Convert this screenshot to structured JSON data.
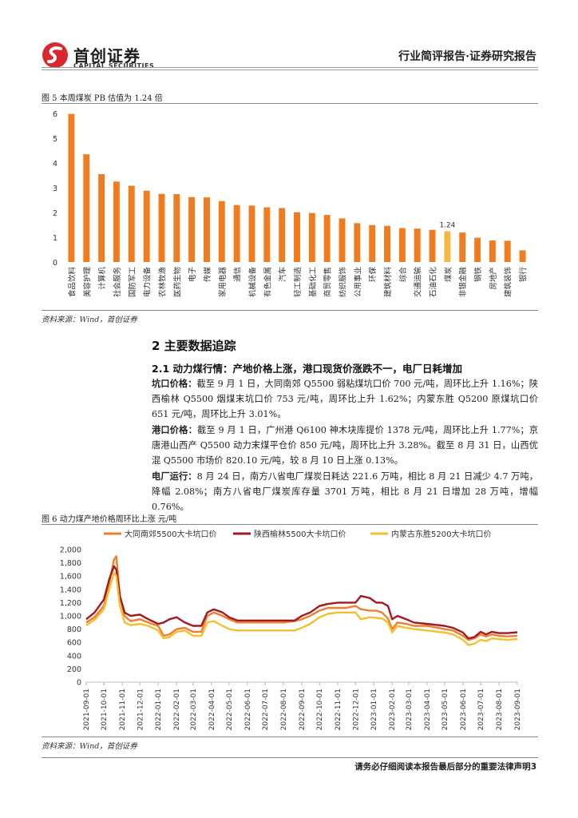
{
  "header": {
    "company_cn": "首创证券",
    "company_en": "CAPITAL SECURITIES",
    "report_type": "行业简评报告·证券研究报告",
    "logo_icon": "capital-securities-logo-icon",
    "brand_color": "#d7282f"
  },
  "figure5": {
    "title": "图 5 本周煤炭 PB 估值为 1.24 倍",
    "source": "资料来源：Wind，首创证券"
  },
  "section2": {
    "heading": "2 主要数据追踪",
    "sub_heading": "2.1 动力煤行情：产地价格上涨，港口现货价涨跌不一，电厂日耗增加",
    "p1_label": "坑口价格：",
    "p1_text": "截至 9 月 1 日，大同南郊 Q5500 弱粘煤坑口价 700 元/吨，周环比上升 1.16%；陕西榆林 Q5500 烟煤末坑口价 753 元/吨，周环比上升 1.62%；内蒙东胜 Q5200 原煤坑口价 651 元/吨，周环比上升 3.01%。",
    "p2_label": "港口价格：",
    "p2_text": "截至 9 月 1 日，广州港 Q6100 神木块库提价 1378 元/吨，周环比上升 1.77%；京唐港山西产 Q5500 动力末煤平仓价 850 元/吨，周环比上升 3.28%。截至 8 月 31 日，山西优混 Q5500 市场价 820.10 元/吨，较 8 月 10 日上涨 0.13%。",
    "p3_label": "电厂运行：",
    "p3_text": "8 月 24 日，南方八省电厂煤炭日耗达 221.6 万吨，相比 8 月 21 日减少 4.7 万吨，降幅 2.08%；南方八省电厂煤炭库存量 3701 万吨，相比 8 月 21 日增加 28 万吨，增幅 0.76%。"
  },
  "figure6": {
    "title": "图 6 动力煤产地价格周环比上涨",
    "unit": "元/吨",
    "source": "资料来源：Wind，首创证券"
  },
  "footer": {
    "disclaimer": "请务必仔细阅读本报告最后部分的重要法律声明",
    "page_number": "3"
  },
  "chart_data": [
    {
      "type": "bar",
      "title": "",
      "categories": [
        "食品饮料",
        "美容护理",
        "计算机",
        "社会服务",
        "国防军工",
        "电力设备",
        "农林牧渔",
        "医药生物",
        "电子",
        "传媒",
        "家用电器",
        "通信",
        "机械设备",
        "有色金属",
        "汽车",
        "轻工制造",
        "基础化工",
        "商贸零售",
        "纺织服饰",
        "公用事业",
        "环保",
        "建筑材料",
        "综合",
        "交通运输",
        "石油石化",
        "煤炭",
        "非银金融",
        "钢铁",
        "房地产",
        "建筑装饰",
        "银行"
      ],
      "values": [
        5.98,
        4.35,
        3.55,
        3.25,
        3.08,
        2.88,
        2.75,
        2.74,
        2.62,
        2.61,
        2.46,
        2.3,
        2.28,
        2.21,
        2.18,
        2.01,
        1.98,
        1.9,
        1.76,
        1.57,
        1.49,
        1.46,
        1.37,
        1.35,
        1.3,
        1.24,
        1.19,
        0.98,
        0.87,
        0.86,
        0.47
      ],
      "ylim": [
        0,
        6
      ],
      "yticks": [
        0,
        1,
        2,
        3,
        4,
        5,
        6
      ],
      "highlight_category": "煤炭",
      "highlight_label": "1.24",
      "bar_color": "#f07c21",
      "highlight_color": "#f5b942",
      "grid": false
    },
    {
      "type": "line",
      "title": "",
      "ylim": [
        0,
        2000
      ],
      "yticks": [
        "0",
        "200",
        "400",
        "600",
        "800",
        "1,000",
        "1,200",
        "1,400",
        "1,600",
        "1,800",
        "2,000"
      ],
      "xticks": [
        "2021-09-01",
        "2021-10-01",
        "2021-11-01",
        "2021-12-01",
        "2022-01-01",
        "2022-02-01",
        "2022-03-01",
        "2022-04-01",
        "2022-05-01",
        "2022-06-01",
        "2022-07-01",
        "2022-08-01",
        "2022-09-01",
        "2022-10-01",
        "2022-11-01",
        "2022-12-01",
        "2023-01-01",
        "2023-02-01",
        "2023-03-01",
        "2023-04-01",
        "2023-05-01",
        "2023-06-01",
        "2023-07-01",
        "2023-08-01",
        "2023-09-01"
      ],
      "legend_position": "top",
      "grid": false,
      "series": [
        {
          "name": "大同南郊5500大卡坑口价",
          "color": "#ee7d31",
          "points": [
            [
              "2021-09-01",
              900
            ],
            [
              "2021-09-15",
              980
            ],
            [
              "2021-10-01",
              1150
            ],
            [
              "2021-10-10",
              1500
            ],
            [
              "2021-10-18",
              1850
            ],
            [
              "2021-10-22",
              1900
            ],
            [
              "2021-10-28",
              1300
            ],
            [
              "2021-11-05",
              1000
            ],
            [
              "2021-11-15",
              920
            ],
            [
              "2021-12-01",
              950
            ],
            [
              "2021-12-15",
              900
            ],
            [
              "2022-01-01",
              850
            ],
            [
              "2022-01-10",
              700
            ],
            [
              "2022-01-20",
              720
            ],
            [
              "2022-02-01",
              800
            ],
            [
              "2022-02-15",
              820
            ],
            [
              "2022-03-01",
              760
            ],
            [
              "2022-03-15",
              760
            ],
            [
              "2022-03-25",
              1000
            ],
            [
              "2022-04-05",
              1050
            ],
            [
              "2022-04-20",
              1000
            ],
            [
              "2022-05-01",
              950
            ],
            [
              "2022-05-15",
              900
            ],
            [
              "2022-06-01",
              900
            ],
            [
              "2022-07-01",
              900
            ],
            [
              "2022-08-01",
              900
            ],
            [
              "2022-08-20",
              920
            ],
            [
              "2022-09-01",
              950
            ],
            [
              "2022-09-15",
              1000
            ],
            [
              "2022-10-01",
              1080
            ],
            [
              "2022-10-15",
              1120
            ],
            [
              "2022-11-01",
              1120
            ],
            [
              "2022-11-15",
              1120
            ],
            [
              "2022-12-01",
              1150
            ],
            [
              "2022-12-10",
              1100
            ],
            [
              "2022-12-25",
              1080
            ],
            [
              "2023-01-05",
              1080
            ],
            [
              "2023-01-15",
              1050
            ],
            [
              "2023-01-25",
              960
            ],
            [
              "2023-02-01",
              800
            ],
            [
              "2023-02-10",
              900
            ],
            [
              "2023-02-25",
              880
            ],
            [
              "2023-03-10",
              850
            ],
            [
              "2023-04-01",
              850
            ],
            [
              "2023-04-20",
              820
            ],
            [
              "2023-05-01",
              800
            ],
            [
              "2023-05-15",
              780
            ],
            [
              "2023-06-01",
              700
            ],
            [
              "2023-06-10",
              640
            ],
            [
              "2023-06-20",
              660
            ],
            [
              "2023-07-01",
              720
            ],
            [
              "2023-07-10",
              690
            ],
            [
              "2023-07-20",
              720
            ],
            [
              "2023-08-01",
              700
            ],
            [
              "2023-08-15",
              690
            ],
            [
              "2023-09-01",
              700
            ]
          ]
        },
        {
          "name": "陕西榆林5500大卡坑口价",
          "color": "#a11a1f",
          "points": [
            [
              "2021-09-01",
              950
            ],
            [
              "2021-09-15",
              1050
            ],
            [
              "2021-10-01",
              1250
            ],
            [
              "2021-10-10",
              1550
            ],
            [
              "2021-10-18",
              1750
            ],
            [
              "2021-10-22",
              1700
            ],
            [
              "2021-10-28",
              1300
            ],
            [
              "2021-11-05",
              1050
            ],
            [
              "2021-11-15",
              1000
            ],
            [
              "2021-12-01",
              1020
            ],
            [
              "2021-12-15",
              950
            ],
            [
              "2022-01-01",
              880
            ],
            [
              "2022-01-10",
              900
            ],
            [
              "2022-01-20",
              950
            ],
            [
              "2022-02-01",
              980
            ],
            [
              "2022-02-15",
              900
            ],
            [
              "2022-03-01",
              850
            ],
            [
              "2022-03-15",
              850
            ],
            [
              "2022-03-25",
              1050
            ],
            [
              "2022-04-05",
              1100
            ],
            [
              "2022-04-20",
              1050
            ],
            [
              "2022-05-01",
              980
            ],
            [
              "2022-05-15",
              930
            ],
            [
              "2022-06-01",
              930
            ],
            [
              "2022-07-01",
              930
            ],
            [
              "2022-08-01",
              930
            ],
            [
              "2022-08-20",
              930
            ],
            [
              "2022-09-01",
              1000
            ],
            [
              "2022-09-15",
              1050
            ],
            [
              "2022-10-01",
              1150
            ],
            [
              "2022-10-15",
              1180
            ],
            [
              "2022-11-01",
              1200
            ],
            [
              "2022-11-15",
              1200
            ],
            [
              "2022-12-01",
              1200
            ],
            [
              "2022-12-10",
              1300
            ],
            [
              "2022-12-25",
              1270
            ],
            [
              "2023-01-05",
              1200
            ],
            [
              "2023-01-15",
              1200
            ],
            [
              "2023-01-25",
              1150
            ],
            [
              "2023-02-01",
              950
            ],
            [
              "2023-02-10",
              1000
            ],
            [
              "2023-02-25",
              950
            ],
            [
              "2023-03-10",
              900
            ],
            [
              "2023-04-01",
              880
            ],
            [
              "2023-04-20",
              860
            ],
            [
              "2023-05-01",
              850
            ],
            [
              "2023-05-15",
              820
            ],
            [
              "2023-06-01",
              750
            ],
            [
              "2023-06-10",
              660
            ],
            [
              "2023-06-20",
              680
            ],
            [
              "2023-07-01",
              760
            ],
            [
              "2023-07-10",
              720
            ],
            [
              "2023-07-20",
              760
            ],
            [
              "2023-08-01",
              740
            ],
            [
              "2023-08-15",
              740
            ],
            [
              "2023-09-01",
              753
            ]
          ]
        },
        {
          "name": "内蒙古东胜5200大卡坑口价",
          "color": "#f2c02c",
          "points": [
            [
              "2021-09-01",
              860
            ],
            [
              "2021-09-15",
              940
            ],
            [
              "2021-10-01",
              1100
            ],
            [
              "2021-10-10",
              1400
            ],
            [
              "2021-10-18",
              1650
            ],
            [
              "2021-10-22",
              1600
            ],
            [
              "2021-10-28",
              1150
            ],
            [
              "2021-11-05",
              900
            ],
            [
              "2021-11-15",
              860
            ],
            [
              "2021-12-01",
              880
            ],
            [
              "2021-12-15",
              850
            ],
            [
              "2022-01-01",
              780
            ],
            [
              "2022-01-10",
              660
            ],
            [
              "2022-01-20",
              680
            ],
            [
              "2022-02-01",
              760
            ],
            [
              "2022-02-15",
              780
            ],
            [
              "2022-03-01",
              700
            ],
            [
              "2022-03-15",
              700
            ],
            [
              "2022-03-25",
              900
            ],
            [
              "2022-04-05",
              920
            ],
            [
              "2022-04-20",
              850
            ],
            [
              "2022-05-01",
              800
            ],
            [
              "2022-05-15",
              780
            ],
            [
              "2022-06-01",
              780
            ],
            [
              "2022-07-01",
              780
            ],
            [
              "2022-08-01",
              780
            ],
            [
              "2022-08-20",
              780
            ],
            [
              "2022-09-01",
              820
            ],
            [
              "2022-09-15",
              880
            ],
            [
              "2022-10-01",
              980
            ],
            [
              "2022-10-15",
              1030
            ],
            [
              "2022-11-01",
              1050
            ],
            [
              "2022-11-15",
              1050
            ],
            [
              "2022-12-01",
              1050
            ],
            [
              "2022-12-10",
              950
            ],
            [
              "2022-12-25",
              980
            ],
            [
              "2023-01-05",
              970
            ],
            [
              "2023-01-15",
              960
            ],
            [
              "2023-01-25",
              900
            ],
            [
              "2023-02-01",
              750
            ],
            [
              "2023-02-10",
              850
            ],
            [
              "2023-02-25",
              820
            ],
            [
              "2023-03-10",
              800
            ],
            [
              "2023-04-01",
              780
            ],
            [
              "2023-04-20",
              760
            ],
            [
              "2023-05-01",
              750
            ],
            [
              "2023-05-15",
              720
            ],
            [
              "2023-06-01",
              640
            ],
            [
              "2023-06-10",
              560
            ],
            [
              "2023-06-20",
              580
            ],
            [
              "2023-07-01",
              640
            ],
            [
              "2023-07-10",
              620
            ],
            [
              "2023-07-20",
              660
            ],
            [
              "2023-08-01",
              650
            ],
            [
              "2023-08-15",
              640
            ],
            [
              "2023-09-01",
              651
            ]
          ]
        }
      ]
    }
  ]
}
